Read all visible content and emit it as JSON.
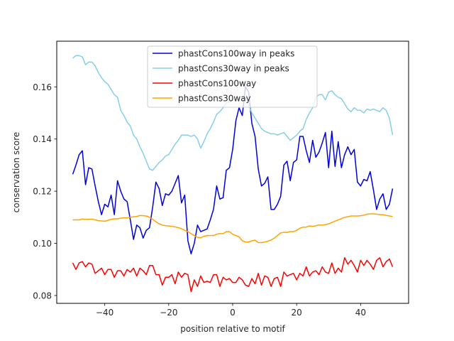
{
  "chart_data": {
    "type": "line",
    "title": "",
    "xlabel": "position relative to motif",
    "ylabel": "conservation score",
    "xlim": [
      -55,
      55
    ],
    "ylim": [
      0.077,
      0.1775
    ],
    "xticks": [
      -40,
      -20,
      0,
      20,
      40
    ],
    "xtick_labels": [
      "−40",
      "−20",
      "0",
      "20",
      "40"
    ],
    "yticks": [
      0.08,
      0.1,
      0.12,
      0.14,
      0.16
    ],
    "ytick_labels": [
      "0.08",
      "0.10",
      "0.12",
      "0.14",
      "0.16"
    ],
    "legend_position": "top-center",
    "x": [
      -50,
      -49,
      -48,
      -47,
      -46,
      -45,
      -44,
      -43,
      -42,
      -41,
      -40,
      -39,
      -38,
      -37,
      -36,
      -35,
      -34,
      -33,
      -32,
      -31,
      -30,
      -29,
      -28,
      -27,
      -26,
      -25,
      -24,
      -23,
      -22,
      -21,
      -20,
      -19,
      -18,
      -17,
      -16,
      -15,
      -14,
      -13,
      -12,
      -11,
      -10,
      -9,
      -8,
      -7,
      -6,
      -5,
      -4,
      -3,
      -2,
      -1,
      0,
      1,
      2,
      3,
      4,
      5,
      6,
      7,
      8,
      9,
      10,
      11,
      12,
      13,
      14,
      15,
      16,
      17,
      18,
      19,
      20,
      21,
      22,
      23,
      24,
      25,
      26,
      27,
      28,
      29,
      30,
      31,
      32,
      33,
      34,
      35,
      36,
      37,
      38,
      39,
      40,
      41,
      42,
      43,
      44,
      45,
      46,
      47,
      48,
      49,
      50
    ],
    "series": [
      {
        "name": "phastCons100way in peaks",
        "color": "#0000dd",
        "values": [
          0.1265,
          0.13,
          0.134,
          0.1355,
          0.1225,
          0.129,
          0.1285,
          0.122,
          0.116,
          0.111,
          0.115,
          0.114,
          0.1185,
          0.111,
          0.124,
          0.12,
          0.117,
          0.116,
          0.109,
          0.1015,
          0.107,
          0.106,
          0.102,
          0.105,
          0.106,
          0.114,
          0.1235,
          0.121,
          0.1145,
          0.119,
          0.1185,
          0.12,
          0.123,
          0.126,
          0.1155,
          0.1185,
          0.101,
          0.096,
          0.1,
          0.107,
          0.1045,
          0.105,
          0.1055,
          0.109,
          0.113,
          0.122,
          0.117,
          0.1175,
          0.128,
          0.129,
          0.136,
          0.147,
          0.152,
          0.149,
          0.16,
          0.158,
          0.146,
          0.141,
          0.1285,
          0.122,
          0.123,
          0.1255,
          0.113,
          0.113,
          0.115,
          0.118,
          0.13,
          0.1315,
          0.124,
          0.131,
          0.132,
          0.141,
          0.141,
          0.1355,
          0.131,
          0.1395,
          0.133,
          0.135,
          0.1385,
          0.1425,
          0.129,
          0.143,
          0.1295,
          0.139,
          0.129,
          0.134,
          0.137,
          0.134,
          0.136,
          0.1235,
          0.122,
          0.1245,
          0.124,
          0.1275,
          0.1205,
          0.113,
          0.117,
          0.119,
          0.113,
          0.115,
          0.121
        ]
      },
      {
        "name": "phastCons30way in peaks",
        "color": "#87ceeb",
        "values": [
          0.171,
          0.172,
          0.172,
          0.1715,
          0.1685,
          0.1695,
          0.1695,
          0.168,
          0.1655,
          0.1635,
          0.162,
          0.161,
          0.159,
          0.157,
          0.156,
          0.151,
          0.149,
          0.1465,
          0.145,
          0.1415,
          0.14,
          0.137,
          0.1345,
          0.1315,
          0.1285,
          0.128,
          0.1295,
          0.131,
          0.132,
          0.1335,
          0.134,
          0.136,
          0.138,
          0.1395,
          0.1415,
          0.1415,
          0.1415,
          0.141,
          0.1415,
          0.14,
          0.1365,
          0.139,
          0.142,
          0.144,
          0.1465,
          0.1495,
          0.1505,
          0.152,
          0.154,
          0.154,
          0.155,
          0.155,
          0.1555,
          0.1555,
          0.155,
          0.153,
          0.15,
          0.148,
          0.146,
          0.144,
          0.143,
          0.1425,
          0.142,
          0.142,
          0.1415,
          0.142,
          0.1425,
          0.141,
          0.1395,
          0.1405,
          0.1415,
          0.143,
          0.144,
          0.1475,
          0.15,
          0.152,
          0.156,
          0.157,
          0.157,
          0.155,
          0.158,
          0.1585,
          0.157,
          0.156,
          0.1555,
          0.1535,
          0.1515,
          0.1505,
          0.152,
          0.151,
          0.151,
          0.15,
          0.1515,
          0.151,
          0.1515,
          0.151,
          0.1505,
          0.152,
          0.151,
          0.148,
          0.1415
        ]
      },
      {
        "name": "phastCons100way",
        "color": "#ff0000",
        "values": [
          0.0925,
          0.09,
          0.0925,
          0.093,
          0.091,
          0.0925,
          0.092,
          0.0885,
          0.0895,
          0.0905,
          0.088,
          0.09,
          0.09,
          0.087,
          0.0895,
          0.0895,
          0.0875,
          0.09,
          0.089,
          0.0905,
          0.0875,
          0.0905,
          0.0895,
          0.088,
          0.0915,
          0.0915,
          0.088,
          0.088,
          0.084,
          0.087,
          0.087,
          0.088,
          0.0845,
          0.089,
          0.087,
          0.0885,
          0.088,
          0.0815,
          0.086,
          0.0835,
          0.0875,
          0.085,
          0.0855,
          0.085,
          0.088,
          0.088,
          0.0835,
          0.087,
          0.086,
          0.0865,
          0.085,
          0.085,
          0.087,
          0.086,
          0.084,
          0.0835,
          0.0865,
          0.0845,
          0.0885,
          0.084,
          0.0875,
          0.087,
          0.0835,
          0.0865,
          0.087,
          0.0835,
          0.089,
          0.0875,
          0.088,
          0.0885,
          0.086,
          0.0885,
          0.0875,
          0.091,
          0.0875,
          0.089,
          0.0895,
          0.088,
          0.091,
          0.089,
          0.0885,
          0.0925,
          0.0885,
          0.0905,
          0.089,
          0.0945,
          0.092,
          0.0935,
          0.0915,
          0.089,
          0.0935,
          0.0915,
          0.0935,
          0.092,
          0.09,
          0.0935,
          0.0945,
          0.091,
          0.093,
          0.094,
          0.091
        ]
      },
      {
        "name": "phastCons30way",
        "color": "#ffa500",
        "values": [
          0.109,
          0.109,
          0.109,
          0.1093,
          0.1092,
          0.1092,
          0.1093,
          0.109,
          0.1087,
          0.1086,
          0.1085,
          0.1088,
          0.1092,
          0.1094,
          0.1094,
          0.1097,
          0.1098,
          0.1098,
          0.11,
          0.1102,
          0.1103,
          0.1107,
          0.1106,
          0.1105,
          0.11,
          0.1092,
          0.1083,
          0.1075,
          0.107,
          0.1068,
          0.1067,
          0.1065,
          0.1063,
          0.106,
          0.1056,
          0.105,
          0.1045,
          0.1037,
          0.103,
          0.1023,
          0.1022,
          0.1027,
          0.103,
          0.103,
          0.103,
          0.1035,
          0.1038,
          0.1037,
          0.1045,
          0.1045,
          0.1035,
          0.103,
          0.1025,
          0.101,
          0.1005,
          0.1005,
          0.101,
          0.1012,
          0.1003,
          0.1003,
          0.1005,
          0.1008,
          0.1013,
          0.102,
          0.103,
          0.104,
          0.1042,
          0.1042,
          0.1045,
          0.1045,
          0.105,
          0.1058,
          0.1062,
          0.1062,
          0.1067,
          0.1065,
          0.1068,
          0.107,
          0.107,
          0.1072,
          0.1075,
          0.108,
          0.1085,
          0.109,
          0.1095,
          0.11,
          0.1102,
          0.1105,
          0.1105,
          0.1105,
          0.1106,
          0.1108,
          0.1112,
          0.1113,
          0.1113,
          0.1112,
          0.111,
          0.111,
          0.1107,
          0.1105,
          0.1103
        ]
      }
    ]
  }
}
